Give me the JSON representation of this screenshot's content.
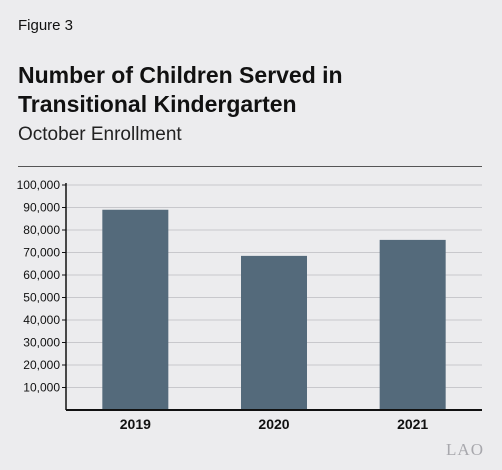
{
  "header": {
    "figure_label": "Figure 3",
    "title_line1": "Number of Children Served in",
    "title_line2": "Transitional Kindergarten",
    "subtitle": "October Enrollment"
  },
  "logo": {
    "text": "LAO"
  },
  "colors": {
    "bar": "#546a7b",
    "background": "#ececee",
    "axis": "#111111",
    "grid": "#c8c8cc"
  },
  "chart_data": {
    "type": "bar",
    "title": "Number of Children Served in Transitional Kindergarten",
    "subtitle": "October Enrollment",
    "categories": [
      "2019",
      "2020",
      "2021"
    ],
    "values": [
      89000,
      68500,
      75600
    ],
    "ylim": [
      0,
      100000
    ],
    "y_ticks": [
      10000,
      20000,
      30000,
      40000,
      50000,
      60000,
      70000,
      80000,
      90000,
      100000
    ],
    "y_tick_labels": [
      "10,000",
      "20,000",
      "30,000",
      "40,000",
      "50,000",
      "60,000",
      "70,000",
      "80,000",
      "90,000",
      "100,000"
    ],
    "xlabel": "",
    "ylabel": "",
    "grid": true,
    "legend": "none"
  }
}
